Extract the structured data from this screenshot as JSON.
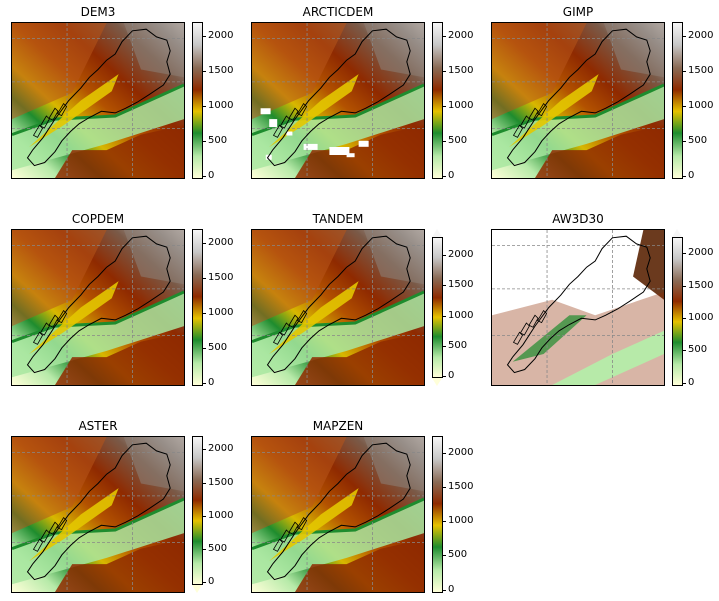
{
  "colormap": [
    "#ffffd9",
    "#b7eaa9",
    "#1e8c2e",
    "#e6c200",
    "#8f2a00",
    "#8a6a55",
    "#c8c8c8",
    "#f6f6f6"
  ],
  "colormap_name": "terrain-like (light yellow → green → gold → dark red → brown → grey → white)",
  "chart_data": [
    {
      "type": "heatmap",
      "title": "DEM3",
      "colorbar_ticks": [
        "0",
        "500",
        "1000",
        "1500",
        "2000"
      ],
      "vmin": -50,
      "vmax": 2200,
      "extend": "none",
      "nodata": "none",
      "grid": true
    },
    {
      "type": "heatmap",
      "title": "ARCTICDEM",
      "colorbar_ticks": [
        "0",
        "500",
        "1000",
        "1500",
        "2000"
      ],
      "vmin": -50,
      "vmax": 2200,
      "extend": "none",
      "nodata": "scattered white patches",
      "grid": true
    },
    {
      "type": "heatmap",
      "title": "GIMP",
      "colorbar_ticks": [
        "0",
        "500",
        "1000",
        "1500",
        "2000"
      ],
      "vmin": -50,
      "vmax": 2200,
      "extend": "none",
      "nodata": "none",
      "grid": true
    },
    {
      "type": "heatmap",
      "title": "COPDEM",
      "colorbar_ticks": [
        "0",
        "500",
        "1000",
        "1500",
        "2000"
      ],
      "vmin": -50,
      "vmax": 2200,
      "extend": "none",
      "nodata": "none",
      "grid": true
    },
    {
      "type": "heatmap",
      "title": "TANDEM",
      "colorbar_ticks": [
        "0",
        "500",
        "1000",
        "1500",
        "2000"
      ],
      "vmin": -30,
      "vmax": 2300,
      "extend": "both",
      "nodata": "none",
      "grid": true
    },
    {
      "type": "heatmap",
      "title": "AW3D30",
      "colorbar_ticks": [
        "0",
        "500",
        "1000",
        "1500",
        "2000"
      ],
      "vmin": -50,
      "vmax": 2250,
      "extend": "max",
      "nodata": "large white gaps",
      "grid": true
    },
    {
      "type": "heatmap",
      "title": "ASTER",
      "colorbar_ticks": [
        "0",
        "500",
        "1000",
        "1500",
        "2000"
      ],
      "vmin": -40,
      "vmax": 2200,
      "extend": "min",
      "nodata": "none",
      "grid": true
    },
    {
      "type": "heatmap",
      "title": "MAPZEN",
      "colorbar_ticks": [
        "0",
        "500",
        "1000",
        "1500",
        "2000"
      ],
      "vmin": -50,
      "vmax": 2250,
      "extend": "none",
      "nodata": "none",
      "grid": true
    }
  ]
}
